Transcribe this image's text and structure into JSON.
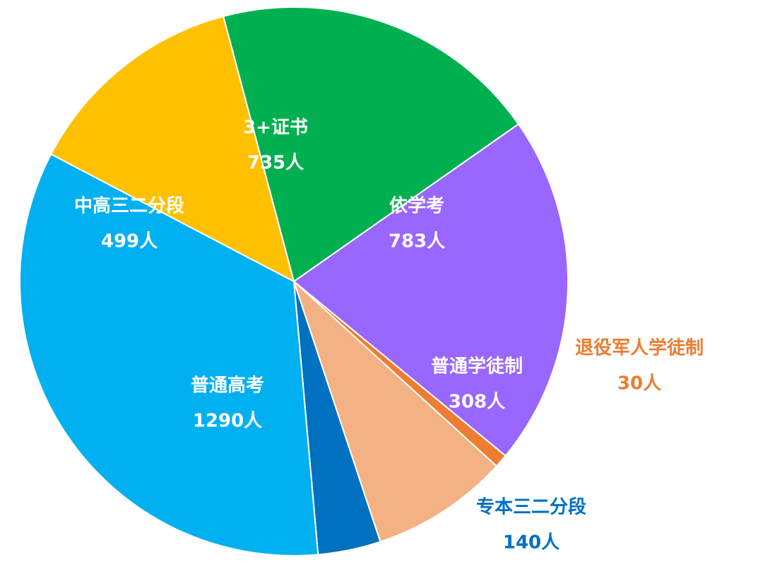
{
  "chart_data": {
    "type": "pie",
    "title": "",
    "start_category": "依学考",
    "direction": "clockwise",
    "legend": "none",
    "slices": [
      {
        "name": "依学考",
        "value": 783,
        "value_label": "783人",
        "color": "#9966FF",
        "label_color": "#FFFFFF",
        "label_position": "inside"
      },
      {
        "name": "退役军人学徒制",
        "value": 30,
        "value_label": "30人",
        "color": "#ED7D31",
        "label_color": "#ED7D31",
        "label_position": "outside"
      },
      {
        "name": "普通学徒制",
        "value": 308,
        "value_label": "308人",
        "color": "#F4B183",
        "label_color": "#FFFFFF",
        "label_position": "inside"
      },
      {
        "name": "专本三二分段",
        "value": 140,
        "value_label": "140人",
        "color": "#0070C0",
        "label_color": "#0070C0",
        "label_position": "outside"
      },
      {
        "name": "普通高考",
        "value": 1290,
        "value_label": "1290人",
        "color": "#00B0F0",
        "label_color": "#FFFFFF",
        "label_position": "inside"
      },
      {
        "name": "中高三二分段",
        "value": 499,
        "value_label": "499人",
        "color": "#FFC000",
        "label_color": "#FFFFFF",
        "label_position": "inside"
      },
      {
        "name": "3+证书",
        "value": 735,
        "value_label": "735人",
        "color": "#00B050",
        "label_color": "#FFFFFF",
        "label_position": "inside"
      }
    ]
  }
}
